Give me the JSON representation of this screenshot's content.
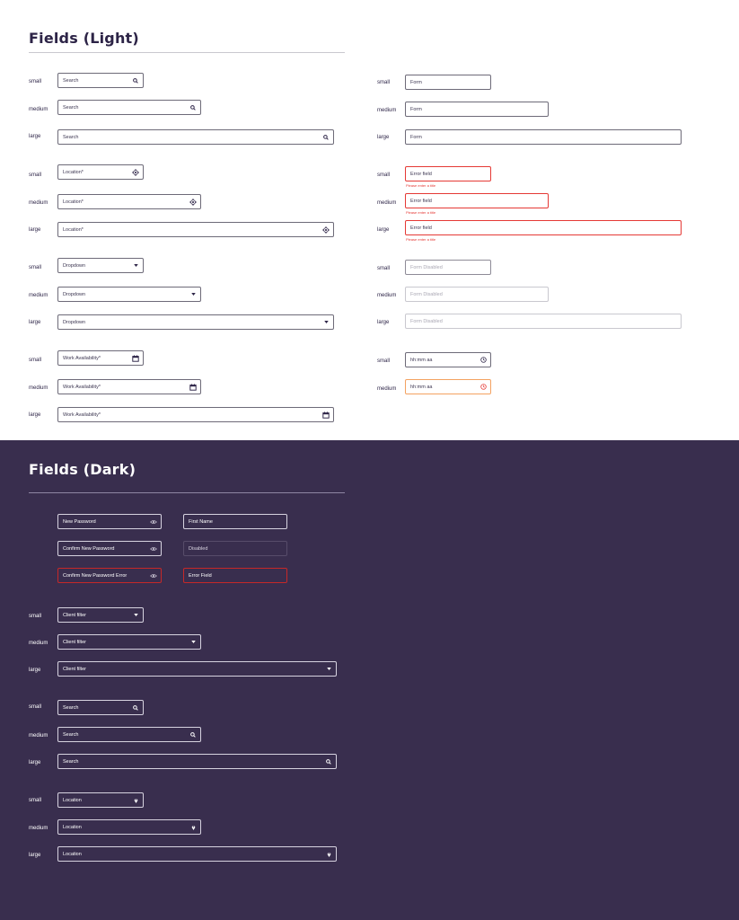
{
  "light": {
    "title": "Fields (Light)",
    "sizes": {
      "small": "small",
      "medium": "medium",
      "large": "large"
    },
    "search_placeholder": "Search",
    "location_placeholder": "Location*",
    "dropdown_placeholder": "Dropdown",
    "work_placeholder": "Work Availability*",
    "form_placeholder": "Form",
    "error_field_value": "Error field",
    "error_message": "Please enter a title",
    "disabled_placeholder": "Form Disabled",
    "time_placeholder": "hh:mm aa",
    "colors": {
      "error": "#e53935",
      "warning": "#f4a261",
      "border": "#6d6a78"
    }
  },
  "dark": {
    "title": "Fields (Dark)",
    "sizes": {
      "small": "small",
      "medium": "medium",
      "large": "large"
    },
    "new_password": "New Password",
    "confirm_password": "Confirm New Password",
    "confirm_password_error": "Confirm New Password Error",
    "first_name": "First Name",
    "disabled": "Disabled",
    "error_field": "Error Field",
    "client_filter": "Client filter",
    "search_placeholder": "Search",
    "location_placeholder": "Location",
    "colors": {
      "background": "#392e4e",
      "error": "#c62828"
    }
  }
}
